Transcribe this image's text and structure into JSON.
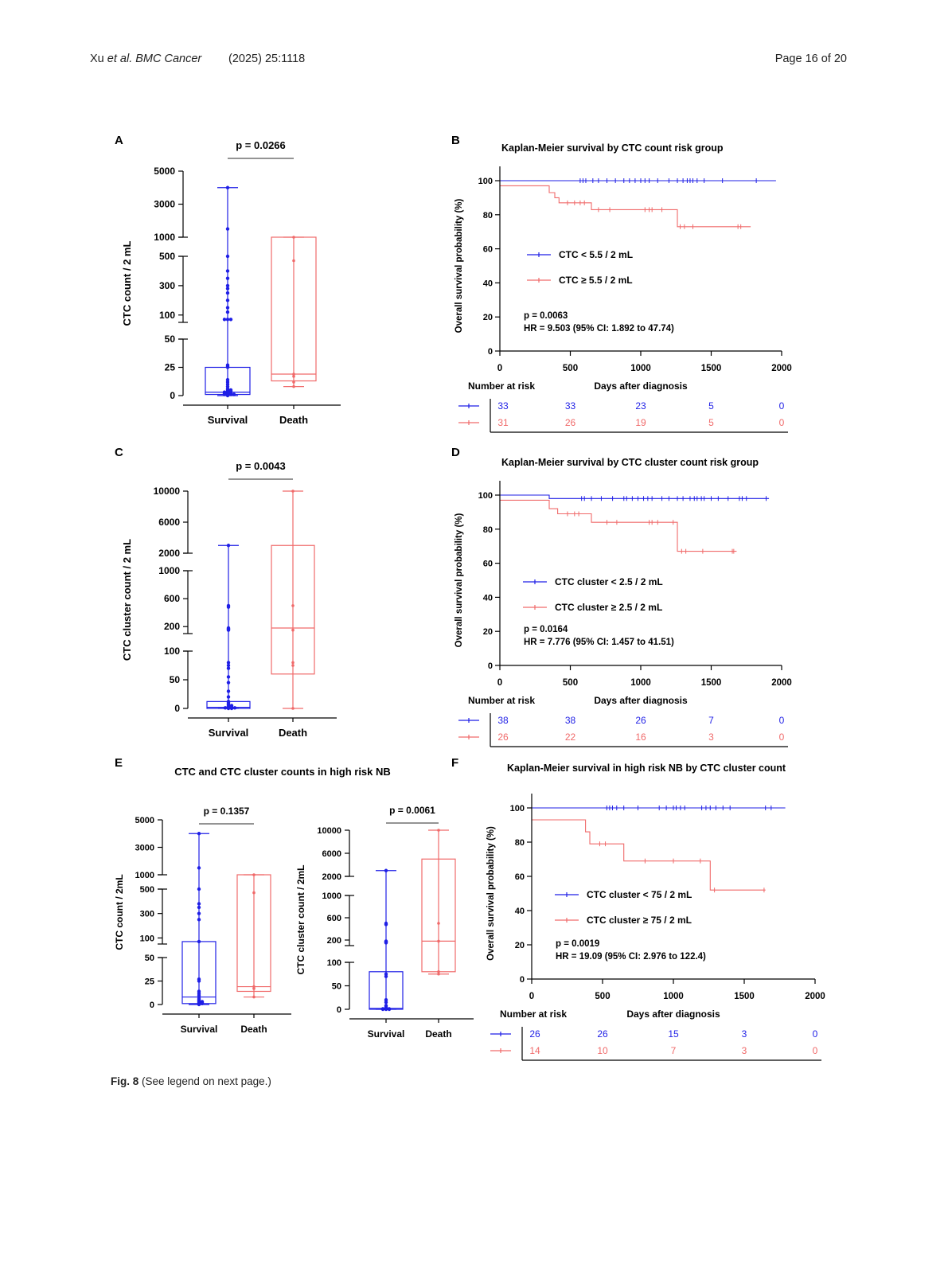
{
  "header": {
    "authors": "Xu",
    "etal": "et al.",
    "journal": "BMC Cancer",
    "citation": "(2025) 25:1118",
    "page": "Page 16 of 20"
  },
  "caption": {
    "label": "Fig. 8",
    "text": "(See legend on next page.)"
  },
  "colors": {
    "survival": "#1f1fe6",
    "death": "#f06a6a",
    "axis": "#000000"
  },
  "chart_data": [
    {
      "panel": "A",
      "type": "box-scatter",
      "title": "",
      "ylabel": "CTC count / 2 mL",
      "pvalue": "p = 0.0266",
      "categories": [
        "Survival",
        "Death"
      ],
      "y_segments": [
        [
          0,
          50
        ],
        [
          50,
          500
        ],
        [
          1000,
          5000
        ]
      ],
      "ticks": [
        {
          "value": 0,
          "label": "0"
        },
        {
          "value": 25,
          "label": "25"
        },
        {
          "value": 50,
          "label": "50"
        },
        {
          "value": 100,
          "label": "100"
        },
        {
          "value": 300,
          "label": "300"
        },
        {
          "value": 500,
          "label": "500"
        },
        {
          "value": 1000,
          "label": "1000"
        },
        {
          "value": 3000,
          "label": "3000"
        },
        {
          "value": 5000,
          "label": "5000"
        }
      ],
      "groups": [
        {
          "name": "Survival",
          "color": "#1f1fe6",
          "whisker": [
            0,
            4000
          ],
          "box": [
            1,
            25
          ],
          "median": 3,
          "points": [
            4000,
            1500,
            500,
            400,
            350,
            300,
            280,
            250,
            200,
            150,
            120,
            70,
            70,
            70,
            27,
            26,
            25,
            14,
            12,
            10,
            8,
            6,
            5,
            5,
            4,
            4,
            3,
            3,
            3,
            2,
            2,
            2,
            1,
            1,
            1,
            1,
            0
          ]
        },
        {
          "name": "Death",
          "color": "#f06a6a",
          "whisker": [
            8,
            1000
          ],
          "box": [
            13,
            800
          ],
          "median": 19,
          "points": [
            1000,
            470,
            19,
            17,
            12,
            8
          ]
        }
      ]
    },
    {
      "panel": "B",
      "type": "kaplan-meier",
      "title": "Kaplan-Meier survival by CTC count risk group",
      "xlabel": "Days after diagnosis",
      "ylabel": "Overall survival probability (%)",
      "xlim": [
        0,
        2000
      ],
      "ylim": [
        0,
        100
      ],
      "xticks": [
        0,
        500,
        1000,
        1500,
        2000
      ],
      "yticks": [
        0,
        20,
        40,
        60,
        80,
        100
      ],
      "series": [
        {
          "name": "CTC < 5.5 / 2 mL",
          "color": "#1f1fe6",
          "steps": [
            [
              0,
              100
            ],
            [
              1960,
              100
            ]
          ],
          "censor": [
            570,
            590,
            610,
            660,
            700,
            760,
            820,
            880,
            920,
            960,
            1000,
            1030,
            1060,
            1120,
            1200,
            1260,
            1300,
            1330,
            1350,
            1370,
            1400,
            1450,
            1580,
            1820
          ]
        },
        {
          "name": "CTC ≥ 5.5 / 2 mL",
          "color": "#f06a6a",
          "steps": [
            [
              0,
              97
            ],
            [
              350,
              97
            ],
            [
              350,
              93
            ],
            [
              390,
              93
            ],
            [
              390,
              90
            ],
            [
              420,
              90
            ],
            [
              420,
              87
            ],
            [
              650,
              87
            ],
            [
              650,
              83
            ],
            [
              1260,
              83
            ],
            [
              1260,
              73
            ],
            [
              1780,
              73
            ]
          ],
          "censor": [
            480,
            530,
            570,
            600,
            700,
            780,
            1030,
            1060,
            1080,
            1150,
            1280,
            1310,
            1370,
            1690,
            1710
          ]
        }
      ],
      "pvalue": "p = 0.0063",
      "hr": "HR = 9.503 (95% CI: 1.892 to 47.74)",
      "risk_table": {
        "label": "Number at risk",
        "rows": [
          [
            "33",
            "33",
            "23",
            "5",
            "0"
          ],
          [
            "31",
            "26",
            "19",
            "5",
            "0"
          ]
        ]
      }
    },
    {
      "panel": "C",
      "type": "box-scatter",
      "title": "",
      "ylabel": "CTC cluster count / 2 mL",
      "pvalue": "p = 0.0043",
      "categories": [
        "Survival",
        "Death"
      ],
      "y_segments": [
        [
          0,
          100
        ],
        [
          100,
          1000
        ],
        [
          2000,
          10000
        ]
      ],
      "ticks": [
        {
          "value": 0,
          "label": "0"
        },
        {
          "value": 50,
          "label": "50"
        },
        {
          "value": 100,
          "label": "100"
        },
        {
          "value": 200,
          "label": "200"
        },
        {
          "value": 600,
          "label": "600"
        },
        {
          "value": 1000,
          "label": "1000"
        },
        {
          "value": 2000,
          "label": "2000"
        },
        {
          "value": 6000,
          "label": "6000"
        },
        {
          "value": 10000,
          "label": "10000"
        }
      ],
      "groups": [
        {
          "name": "Survival",
          "color": "#1f1fe6",
          "whisker": [
            0,
            3000
          ],
          "box": [
            0,
            12
          ],
          "median": 2,
          "points": [
            3000,
            500,
            480,
            180,
            170,
            160,
            150,
            80,
            75,
            70,
            55,
            45,
            30,
            20,
            12,
            10,
            8,
            6,
            5,
            4,
            3,
            2,
            2,
            1,
            1,
            0,
            0
          ]
        },
        {
          "name": "Death",
          "color": "#f06a6a",
          "whisker": [
            0,
            10000
          ],
          "box": [
            60,
            3000
          ],
          "median": 180,
          "points": [
            10000,
            500,
            150,
            80,
            75,
            0
          ]
        }
      ]
    },
    {
      "panel": "D",
      "type": "kaplan-meier",
      "title": "Kaplan-Meier survival by CTC cluster count risk group",
      "xlabel": "Days after diagnosis",
      "ylabel": "Overall survival probability (%)",
      "xlim": [
        0,
        2000
      ],
      "ylim": [
        0,
        100
      ],
      "xticks": [
        0,
        500,
        1000,
        1500,
        2000
      ],
      "yticks": [
        0,
        20,
        40,
        60,
        80,
        100
      ],
      "series": [
        {
          "name": "CTC cluster < 2.5 / 2 mL",
          "color": "#1f1fe6",
          "steps": [
            [
              0,
              100
            ],
            [
              350,
              100
            ],
            [
              350,
              98
            ],
            [
              1910,
              98
            ]
          ],
          "censor": [
            580,
            600,
            650,
            720,
            800,
            880,
            900,
            940,
            980,
            1020,
            1050,
            1080,
            1150,
            1200,
            1260,
            1300,
            1350,
            1380,
            1400,
            1430,
            1450,
            1500,
            1550,
            1620,
            1700,
            1720,
            1750,
            1890
          ]
        },
        {
          "name": "CTC cluster ≥ 2.5 / 2 mL",
          "color": "#f06a6a",
          "steps": [
            [
              0,
              97
            ],
            [
              350,
              97
            ],
            [
              350,
              92
            ],
            [
              410,
              92
            ],
            [
              410,
              89
            ],
            [
              650,
              89
            ],
            [
              650,
              84
            ],
            [
              1260,
              84
            ],
            [
              1260,
              67
            ],
            [
              1680,
              67
            ]
          ],
          "censor": [
            480,
            530,
            560,
            760,
            830,
            1060,
            1080,
            1120,
            1230,
            1290,
            1320,
            1440,
            1650,
            1660
          ]
        }
      ],
      "pvalue": "p = 0.0164",
      "hr": "HR = 7.776 (95% CI: 1.457 to 41.51)",
      "risk_table": {
        "label": "Number at risk",
        "rows": [
          [
            "38",
            "38",
            "26",
            "7",
            "0"
          ],
          [
            "26",
            "22",
            "16",
            "3",
            "0"
          ]
        ]
      }
    },
    {
      "panel": "E1",
      "type": "box-scatter",
      "title": "CTC and CTC cluster counts in high risk NB",
      "ylabel": "CTC count / 2mL",
      "pvalue": "p = 0.1357",
      "categories": [
        "Survival",
        "Death"
      ],
      "y_segments": [
        [
          0,
          50
        ],
        [
          50,
          500
        ],
        [
          1000,
          5000
        ]
      ],
      "ticks": [
        {
          "value": 0,
          "label": "0"
        },
        {
          "value": 25,
          "label": "25"
        },
        {
          "value": 50,
          "label": "50"
        },
        {
          "value": 100,
          "label": "100"
        },
        {
          "value": 300,
          "label": "300"
        },
        {
          "value": 500,
          "label": "500"
        },
        {
          "value": 1000,
          "label": "1000"
        },
        {
          "value": 3000,
          "label": "3000"
        },
        {
          "value": 5000,
          "label": "5000"
        }
      ],
      "groups": [
        {
          "name": "Survival",
          "color": "#1f1fe6",
          "whisker": [
            0,
            4000
          ],
          "box": [
            1,
            70
          ],
          "median": 8,
          "points": [
            4000,
            1500,
            500,
            380,
            350,
            300,
            250,
            70,
            27,
            25,
            14,
            12,
            10,
            8,
            6,
            5,
            4,
            3,
            3,
            2,
            2,
            1,
            1,
            0
          ]
        },
        {
          "name": "Death",
          "color": "#f06a6a",
          "whisker": [
            8,
            1000
          ],
          "box": [
            14,
            800
          ],
          "median": 19,
          "points": [
            1000,
            470,
            19,
            17,
            8
          ]
        }
      ]
    },
    {
      "panel": "E2",
      "type": "box-scatter",
      "title": "",
      "ylabel": "CTC cluster count / 2mL",
      "pvalue": "p = 0.0061",
      "categories": [
        "Survival",
        "Death"
      ],
      "y_segments": [
        [
          0,
          100
        ],
        [
          100,
          1000
        ],
        [
          2000,
          10000
        ]
      ],
      "ticks": [
        {
          "value": 0,
          "label": "0"
        },
        {
          "value": 50,
          "label": "50"
        },
        {
          "value": 100,
          "label": "100"
        },
        {
          "value": 200,
          "label": "200"
        },
        {
          "value": 600,
          "label": "600"
        },
        {
          "value": 1000,
          "label": "1000"
        },
        {
          "value": 2000,
          "label": "2000"
        },
        {
          "value": 6000,
          "label": "6000"
        },
        {
          "value": 10000,
          "label": "10000"
        }
      ],
      "groups": [
        {
          "name": "Survival",
          "color": "#1f1fe6",
          "whisker": [
            0,
            3000
          ],
          "box": [
            0,
            80
          ],
          "median": 2,
          "points": [
            3000,
            500,
            480,
            180,
            170,
            160,
            150,
            75,
            70,
            20,
            15,
            8,
            5,
            3,
            2,
            1,
            1,
            0,
            0,
            0
          ]
        },
        {
          "name": "Death",
          "color": "#f06a6a",
          "whisker": [
            75,
            10000
          ],
          "box": [
            80,
            5000
          ],
          "median": 180,
          "points": [
            10000,
            500,
            180,
            80,
            75
          ]
        }
      ]
    },
    {
      "panel": "F",
      "type": "kaplan-meier",
      "title": "Kaplan-Meier survival in high risk NB by CTC cluster count",
      "xlabel": "Days after diagnosis",
      "ylabel": "Overall survival probability (%)",
      "xlim": [
        0,
        2000
      ],
      "ylim": [
        0,
        100
      ],
      "xticks": [
        0,
        500,
        1000,
        1500,
        2000
      ],
      "yticks": [
        0,
        20,
        40,
        60,
        80,
        100
      ],
      "series": [
        {
          "name": "CTC cluster < 75 / 2 mL",
          "color": "#1f1fe6",
          "steps": [
            [
              0,
              100
            ],
            [
              1790,
              100
            ]
          ],
          "censor": [
            530,
            550,
            570,
            600,
            650,
            750,
            900,
            950,
            1000,
            1020,
            1050,
            1080,
            1200,
            1230,
            1260,
            1300,
            1350,
            1400,
            1650,
            1690
          ]
        },
        {
          "name": "CTC cluster ≥ 75 / 2 mL",
          "color": "#f06a6a",
          "steps": [
            [
              0,
              93
            ],
            [
              380,
              93
            ],
            [
              380,
              86
            ],
            [
              410,
              86
            ],
            [
              410,
              79
            ],
            [
              650,
              79
            ],
            [
              650,
              69
            ],
            [
              1260,
              69
            ],
            [
              1260,
              52
            ],
            [
              1650,
              52
            ]
          ],
          "censor": [
            480,
            520,
            800,
            1000,
            1190,
            1290,
            1640
          ]
        }
      ],
      "pvalue": "p = 0.0019",
      "hr": "HR = 19.09 (95% CI: 2.976 to 122.4)",
      "risk_table": {
        "label": "Number at risk",
        "rows": [
          [
            "26",
            "26",
            "15",
            "3",
            "0"
          ],
          [
            "14",
            "10",
            "7",
            "3",
            "0"
          ]
        ]
      }
    }
  ],
  "panel_labels": [
    "A",
    "B",
    "C",
    "D",
    "E",
    "F"
  ]
}
